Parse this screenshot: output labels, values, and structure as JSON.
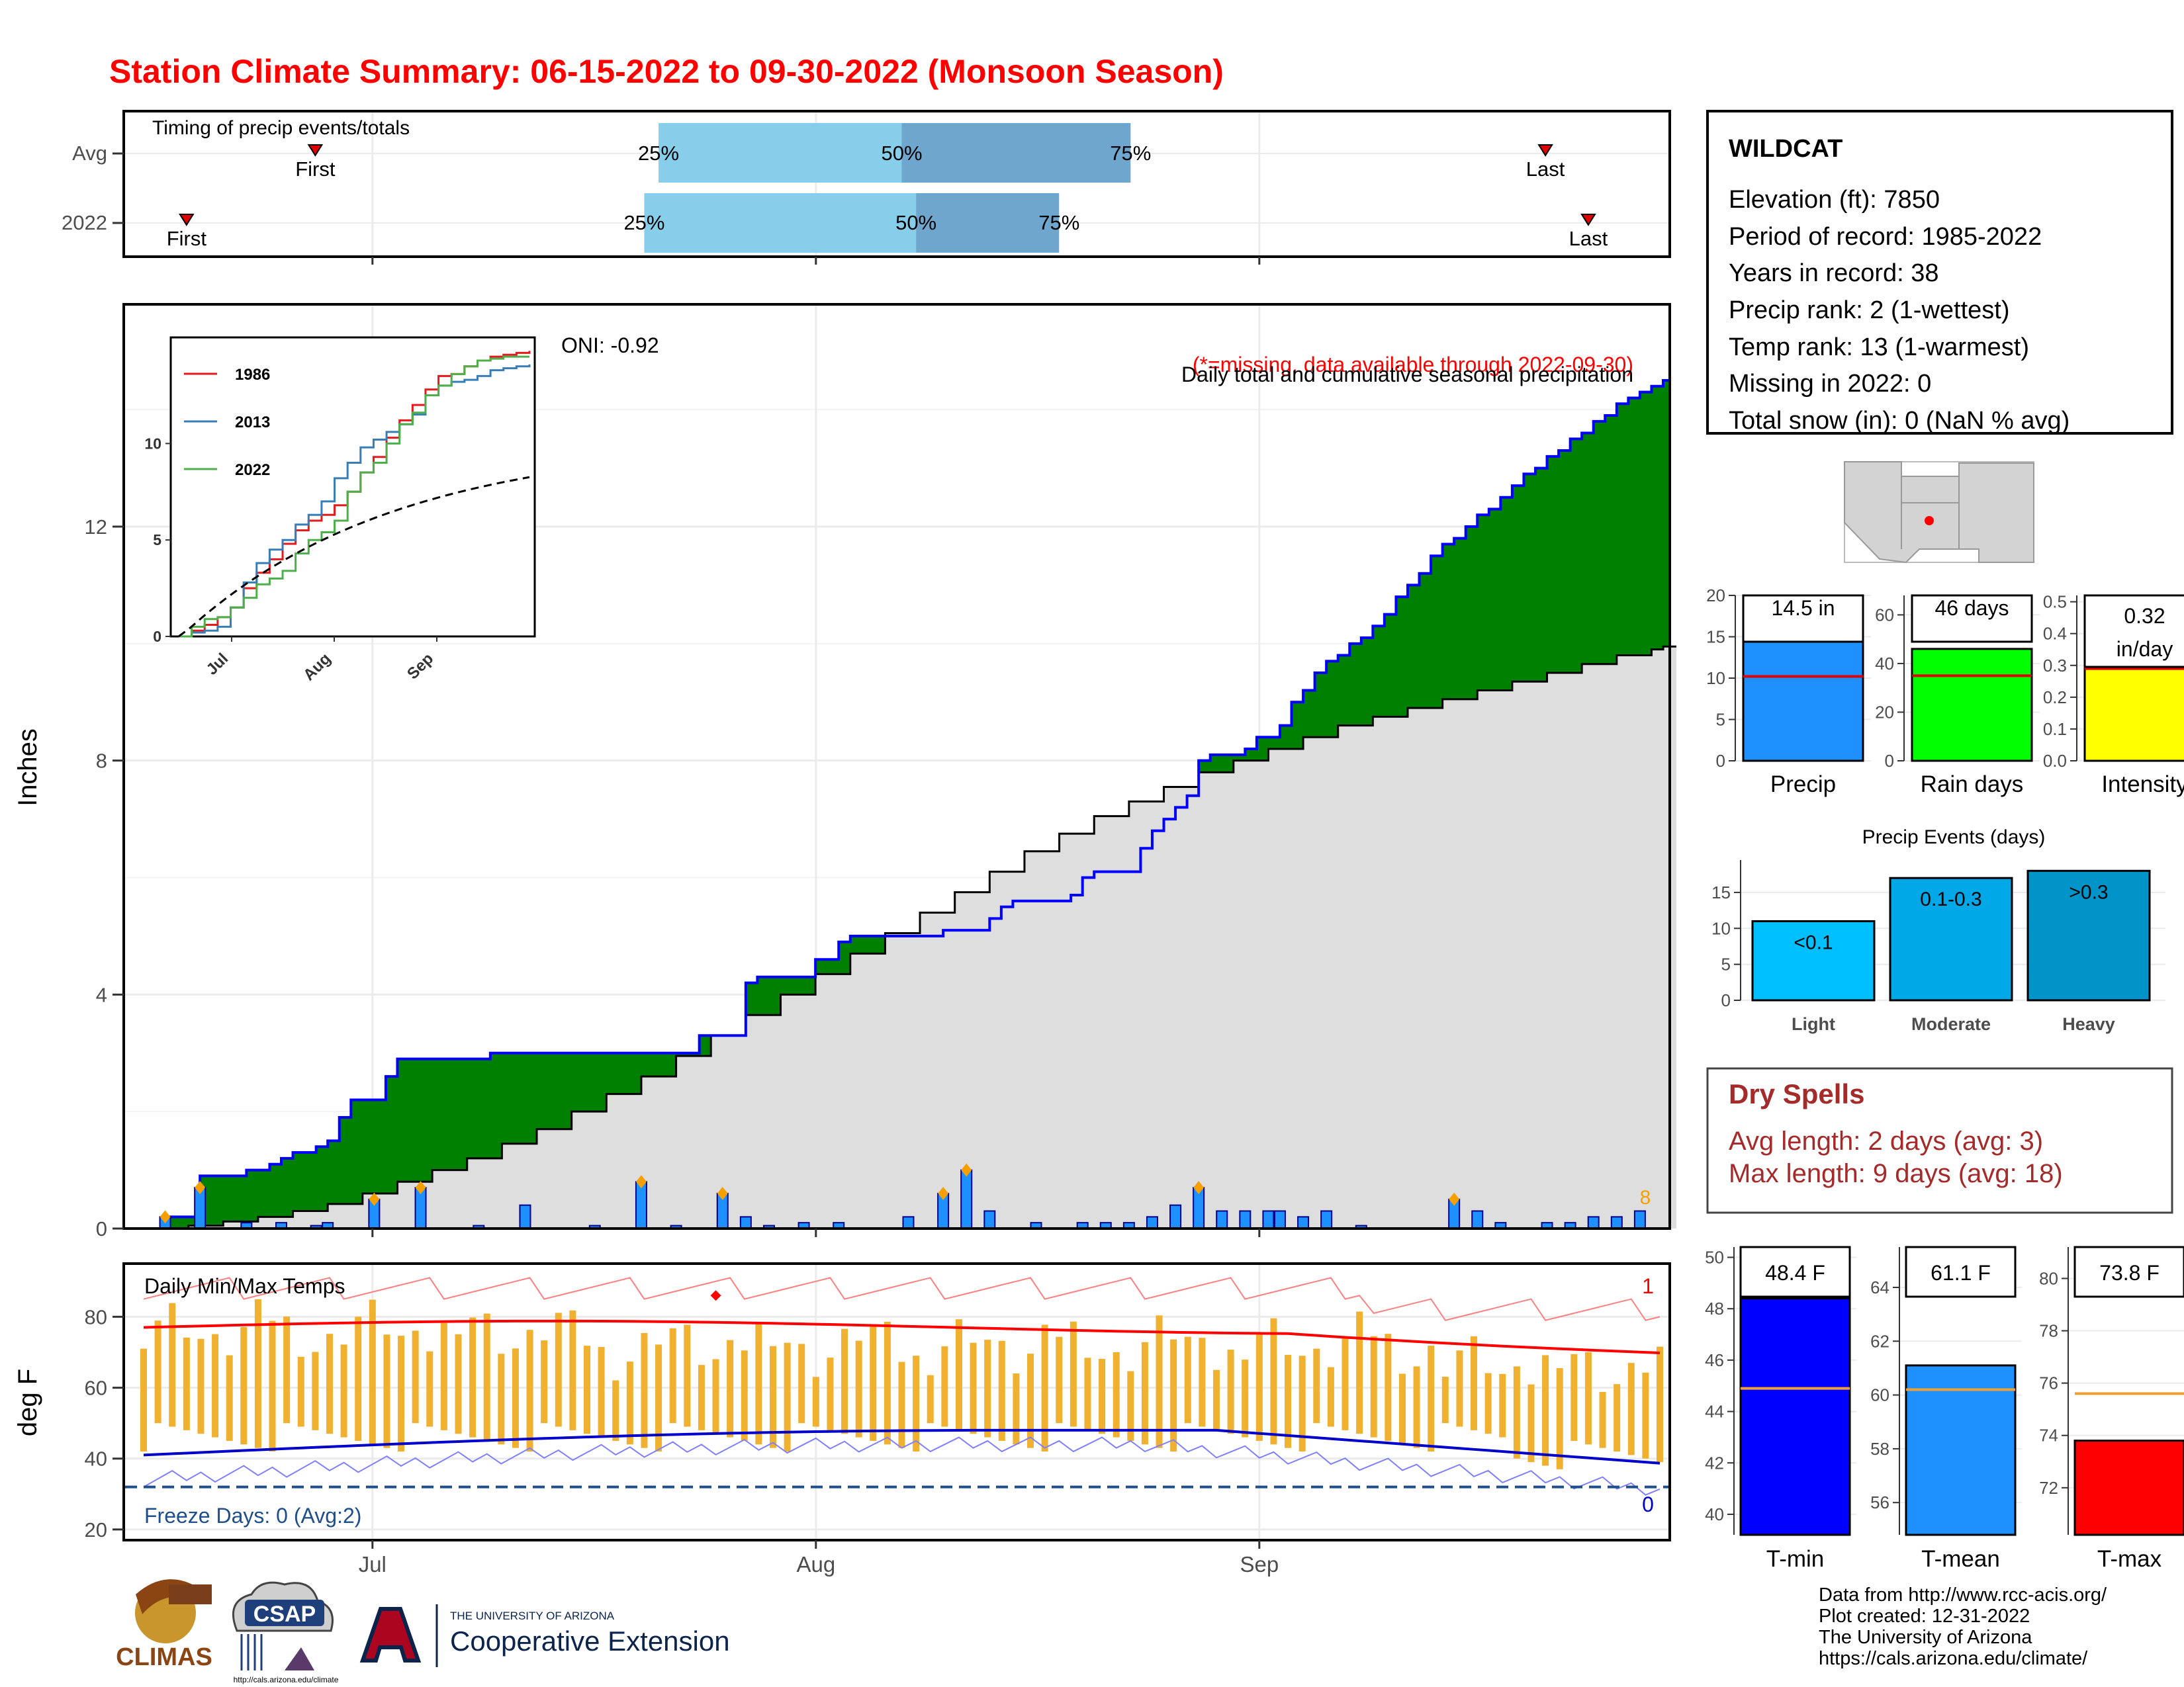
{
  "title": "Station Climate Summary: 06-15-2022 to 09-30-2022 (Monsoon Season)",
  "timing": {
    "title": "Timing of precip events/totals",
    "rows": [
      "Avg",
      "2022"
    ],
    "avg": {
      "first": "06-27",
      "q25": "07-21",
      "q50": "08-07",
      "q75": "08-23",
      "last": "09-21"
    },
    "y2022": {
      "first": "06-18",
      "q25": "07-20",
      "q50": "08-08",
      "q75": "08-18",
      "last": "09-24"
    },
    "first_label": "First",
    "last_label": "Last",
    "q_labels": [
      "25%",
      "50%",
      "75%"
    ],
    "colors": {
      "light": "#87ceeb",
      "dark": "#6ea6cd",
      "marker": "#e00000"
    }
  },
  "station": {
    "name": "WILDCAT",
    "lines": [
      "Elevation (ft): 7850",
      "Period of record: 1985-2022",
      "Years in record: 38",
      "Precip rank: 2 (1-wettest)",
      "Temp rank: 13 (1-warmest)",
      "Missing in 2022: 0",
      "Total snow (in): 0 (NaN % avg)"
    ]
  },
  "main_chart": {
    "ylabel": "Inches",
    "oni": "ONI: -0.92",
    "note1": "Daily total and cumulative seasonal precipitation",
    "note2": "(*=missing, data available through 2022-09-30)",
    "count_label": "8",
    "x_ticks": [
      "Jul",
      "Aug",
      "Sep"
    ],
    "y_ticks": [
      0,
      4,
      8,
      12
    ],
    "colors": {
      "cum_fill": "#008000",
      "cum_line": "#0000ff",
      "avg_fill": "#dedede",
      "daily_bar": "#1e90ff",
      "diamond": "#f5a000"
    }
  },
  "inset": {
    "legend": [
      "1986",
      "2013",
      "2022"
    ],
    "colors": [
      "#e41a1c",
      "#377eb8",
      "#4daf4a"
    ],
    "y_ticks": [
      0,
      5,
      10
    ],
    "x_ticks": [
      "Jul",
      "Aug",
      "Sep"
    ]
  },
  "temp_chart": {
    "ylabel": "deg F",
    "title": "Daily Min/Max Temps",
    "freeze": "Freeze Days: 0 (Avg:2)",
    "count_top": "1",
    "count_bottom": "0",
    "y_ticks": [
      20,
      40,
      60,
      80
    ],
    "colors": {
      "bar": "#f0b030",
      "max_line": "#ff0000",
      "min_line": "#0000cd"
    }
  },
  "side_bars": {
    "precip": {
      "label": "Precip",
      "value_label": "14.5 in",
      "value": 14.5,
      "avg": 10.2,
      "color": "#1e90ff",
      "ticks": [
        0,
        5,
        10,
        15,
        20
      ]
    },
    "rain_days": {
      "label": "Rain days",
      "value_label": "46 days",
      "value": 46,
      "avg": 35,
      "color": "#00ff00",
      "ticks": [
        0,
        20,
        40,
        60
      ]
    },
    "intensity": {
      "label": "Intensity",
      "value_label": "0.32",
      "value_label2": "in/day",
      "value": 0.32,
      "avg": 0.29,
      "color": "#ffff00",
      "ticks": [
        "0.0",
        "0.1",
        "0.2",
        "0.3",
        "0.4",
        "0.5"
      ]
    }
  },
  "events": {
    "title": "Precip Events (days)",
    "categories": [
      "Light",
      "Moderate",
      "Heavy"
    ],
    "values": [
      11,
      17,
      18
    ],
    "labels": [
      "<0.1",
      "0.1-0.3",
      ">0.3"
    ],
    "colors": [
      "#00bfff",
      "#00a8e8",
      "#0094c8"
    ],
    "ticks": [
      0,
      5,
      10,
      15
    ]
  },
  "dry_spells": {
    "title": "Dry Spells",
    "avg": "Avg length: 2 days (avg: 3)",
    "max": "Max length: 9 days (avg: 18)"
  },
  "temp_bars": {
    "tmin": {
      "label": "T-min",
      "value_label": "48.4 F",
      "value": 48.4,
      "avg": 44.9,
      "color": "#0000ff",
      "ticks": [
        40,
        42,
        44,
        46,
        48,
        50
      ]
    },
    "tmean": {
      "label": "T-mean",
      "value_label": "61.1 F",
      "value": 61.1,
      "avg": 60.2,
      "color": "#1e90ff",
      "ticks": [
        56,
        58,
        60,
        62,
        64
      ]
    },
    "tmax": {
      "label": "T-max",
      "value_label": "73.8 F",
      "value": 73.8,
      "avg": 75.6,
      "color": "#ff0000",
      "ticks": [
        72,
        74,
        76,
        78,
        80
      ]
    }
  },
  "credits": [
    "Data from http://www.rcc-acis.org/",
    "Plot created: 12-31-2022",
    "The University of Arizona",
    "https://cals.arizona.edu/climate/"
  ],
  "logos": {
    "climas": "CLIMAS",
    "csap": "CSAP",
    "csap_url": "http://cals.arizona.edu/climate",
    "ua_line1": "THE UNIVERSITY OF ARIZONA",
    "ua_line2": "Cooperative Extension"
  },
  "chart_data": [
    {
      "type": "area",
      "title": "Daily total and cumulative seasonal precipitation",
      "ylabel": "Inches",
      "x_range": [
        "06-15",
        "09-30"
      ],
      "ylim": [
        0,
        15.8
      ],
      "cumulative_2022": [
        [
          0,
          0
        ],
        [
          1,
          0.2
        ],
        [
          2,
          0.2
        ],
        [
          3,
          0.2
        ],
        [
          4,
          0.9
        ],
        [
          5,
          0.9
        ],
        [
          6,
          0.9
        ],
        [
          7,
          0.9
        ],
        [
          8,
          1.0
        ],
        [
          9,
          1.0
        ],
        [
          10,
          1.1
        ],
        [
          11,
          1.2
        ],
        [
          12,
          1.3
        ],
        [
          13,
          1.3
        ],
        [
          14,
          1.4
        ],
        [
          15,
          1.5
        ],
        [
          16,
          1.9
        ],
        [
          17,
          2.2
        ],
        [
          18,
          2.2
        ],
        [
          19,
          2.2
        ],
        [
          20,
          2.6
        ],
        [
          21,
          2.9
        ],
        [
          22,
          2.9
        ],
        [
          23,
          2.9
        ],
        [
          24,
          2.9
        ],
        [
          25,
          2.9
        ],
        [
          26,
          2.9
        ],
        [
          27,
          2.9
        ],
        [
          28,
          2.9
        ],
        [
          29,
          3.0
        ],
        [
          30,
          3.0
        ],
        [
          31,
          3.0
        ],
        [
          32,
          3.0
        ],
        [
          33,
          3.0
        ],
        [
          34,
          3.0
        ],
        [
          35,
          3.0
        ],
        [
          36,
          3.0
        ],
        [
          37,
          3.0
        ],
        [
          38,
          3.0
        ],
        [
          39,
          3.0
        ],
        [
          40,
          3.0
        ],
        [
          41,
          3.0
        ],
        [
          42,
          3.0
        ],
        [
          43,
          3.0
        ],
        [
          44,
          3.0
        ],
        [
          45,
          3.0
        ],
        [
          46,
          3.0
        ],
        [
          47,
          3.3
        ],
        [
          48,
          3.3
        ],
        [
          49,
          3.3
        ],
        [
          50,
          3.3
        ],
        [
          51,
          4.2
        ],
        [
          52,
          4.3
        ],
        [
          53,
          4.3
        ],
        [
          54,
          4.3
        ],
        [
          55,
          4.3
        ],
        [
          56,
          4.3
        ],
        [
          57,
          4.6
        ],
        [
          58,
          4.6
        ],
        [
          59,
          4.9
        ],
        [
          60,
          5.0
        ],
        [
          61,
          5.0
        ],
        [
          62,
          5.0
        ],
        [
          63,
          5.0
        ],
        [
          64,
          5.0
        ],
        [
          65,
          5.0
        ],
        [
          66,
          5.0
        ],
        [
          67,
          5.0
        ],
        [
          68,
          5.1
        ],
        [
          69,
          5.1
        ],
        [
          70,
          5.1
        ],
        [
          71,
          5.1
        ],
        [
          72,
          5.3
        ],
        [
          73,
          5.5
        ],
        [
          74,
          5.6
        ],
        [
          75,
          5.6
        ],
        [
          76,
          5.6
        ],
        [
          77,
          5.6
        ],
        [
          78,
          5.6
        ],
        [
          79,
          5.7
        ],
        [
          80,
          6.0
        ],
        [
          81,
          6.1
        ],
        [
          82,
          6.1
        ],
        [
          83,
          6.1
        ],
        [
          84,
          6.1
        ],
        [
          85,
          6.5
        ],
        [
          86,
          6.8
        ],
        [
          87,
          7.0
        ],
        [
          88,
          7.2
        ],
        [
          89,
          7.4
        ],
        [
          90,
          8.0
        ],
        [
          91,
          8.1
        ],
        [
          92,
          8.1
        ],
        [
          93,
          8.1
        ],
        [
          94,
          8.2
        ],
        [
          95,
          8.4
        ],
        [
          96,
          8.4
        ],
        [
          97,
          8.6
        ],
        [
          98,
          9.0
        ],
        [
          99,
          9.2
        ],
        [
          100,
          9.5
        ],
        [
          101,
          9.7
        ],
        [
          102,
          9.8
        ],
        [
          103,
          10.0
        ],
        [
          104,
          10.1
        ],
        [
          105,
          10.3
        ],
        [
          106,
          10.5
        ],
        [
          107,
          10.8
        ],
        [
          108,
          11.0
        ],
        [
          109,
          11.2
        ],
        [
          110,
          11.5
        ],
        [
          111,
          11.7
        ],
        [
          112,
          11.8
        ],
        [
          113,
          12.0
        ],
        [
          114,
          12.2
        ],
        [
          115,
          12.3
        ],
        [
          116,
          12.5
        ],
        [
          117,
          12.7
        ],
        [
          118,
          12.9
        ],
        [
          119,
          13.0
        ],
        [
          120,
          13.2
        ],
        [
          121,
          13.3
        ],
        [
          122,
          13.5
        ],
        [
          123,
          13.6
        ],
        [
          124,
          13.8
        ],
        [
          125,
          13.9
        ],
        [
          126,
          14.1
        ],
        [
          127,
          14.2
        ],
        [
          128,
          14.3
        ],
        [
          129,
          14.4
        ],
        [
          130,
          14.5
        ]
      ],
      "average": [
        [
          0,
          0
        ],
        [
          3,
          0.05
        ],
        [
          6,
          0.12
        ],
        [
          9,
          0.2
        ],
        [
          12,
          0.3
        ],
        [
          15,
          0.42
        ],
        [
          18,
          0.6
        ],
        [
          21,
          0.8
        ],
        [
          24,
          1.0
        ],
        [
          27,
          1.2
        ],
        [
          30,
          1.45
        ],
        [
          33,
          1.7
        ],
        [
          36,
          2.0
        ],
        [
          39,
          2.3
        ],
        [
          42,
          2.6
        ],
        [
          45,
          2.95
        ],
        [
          48,
          3.3
        ],
        [
          51,
          3.65
        ],
        [
          54,
          4.0
        ],
        [
          57,
          4.35
        ],
        [
          60,
          4.7
        ],
        [
          63,
          5.05
        ],
        [
          66,
          5.4
        ],
        [
          69,
          5.75
        ],
        [
          72,
          6.1
        ],
        [
          75,
          6.45
        ],
        [
          78,
          6.75
        ],
        [
          81,
          7.05
        ],
        [
          84,
          7.3
        ],
        [
          87,
          7.55
        ],
        [
          90,
          7.8
        ],
        [
          93,
          8.0
        ],
        [
          96,
          8.2
        ],
        [
          99,
          8.4
        ],
        [
          102,
          8.6
        ],
        [
          105,
          8.75
        ],
        [
          108,
          8.9
        ],
        [
          111,
          9.05
        ],
        [
          114,
          9.2
        ],
        [
          117,
          9.35
        ],
        [
          120,
          9.5
        ],
        [
          123,
          9.65
        ],
        [
          126,
          9.8
        ],
        [
          129,
          9.9
        ],
        [
          130,
          9.95
        ]
      ],
      "daily": [
        [
          1,
          0.2
        ],
        [
          4,
          0.7
        ],
        [
          8,
          0.1
        ],
        [
          11,
          0.1
        ],
        [
          14,
          0.05
        ],
        [
          15,
          0.1
        ],
        [
          19,
          0.5
        ],
        [
          23,
          0.7
        ],
        [
          28,
          0.05
        ],
        [
          32,
          0.4
        ],
        [
          38,
          0.05
        ],
        [
          42,
          0.8
        ],
        [
          45,
          0.05
        ],
        [
          49,
          0.6
        ],
        [
          51,
          0.2
        ],
        [
          53,
          0.05
        ],
        [
          56,
          0.1
        ],
        [
          59,
          0.1
        ],
        [
          65,
          0.2
        ],
        [
          68,
          0.6
        ],
        [
          70,
          1.0
        ],
        [
          72,
          0.3
        ],
        [
          76,
          0.1
        ],
        [
          80,
          0.1
        ],
        [
          82,
          0.1
        ],
        [
          84,
          0.1
        ],
        [
          86,
          0.2
        ],
        [
          88,
          0.4
        ],
        [
          90,
          0.7
        ],
        [
          92,
          0.3
        ],
        [
          94,
          0.3
        ],
        [
          96,
          0.3
        ],
        [
          97,
          0.3
        ],
        [
          99,
          0.2
        ],
        [
          101,
          0.3
        ],
        [
          104,
          0.05
        ],
        [
          112,
          0.5
        ],
        [
          114,
          0.3
        ],
        [
          116,
          0.1
        ],
        [
          120,
          0.1
        ],
        [
          122,
          0.1
        ],
        [
          124,
          0.2
        ],
        [
          126,
          0.2
        ],
        [
          128,
          0.3
        ]
      ]
    },
    {
      "type": "line",
      "title": "Daily Min/Max Temps",
      "ylabel": "deg F",
      "ylim": [
        17,
        95
      ],
      "x_range": [
        "06-15",
        "09-30"
      ]
    }
  ]
}
